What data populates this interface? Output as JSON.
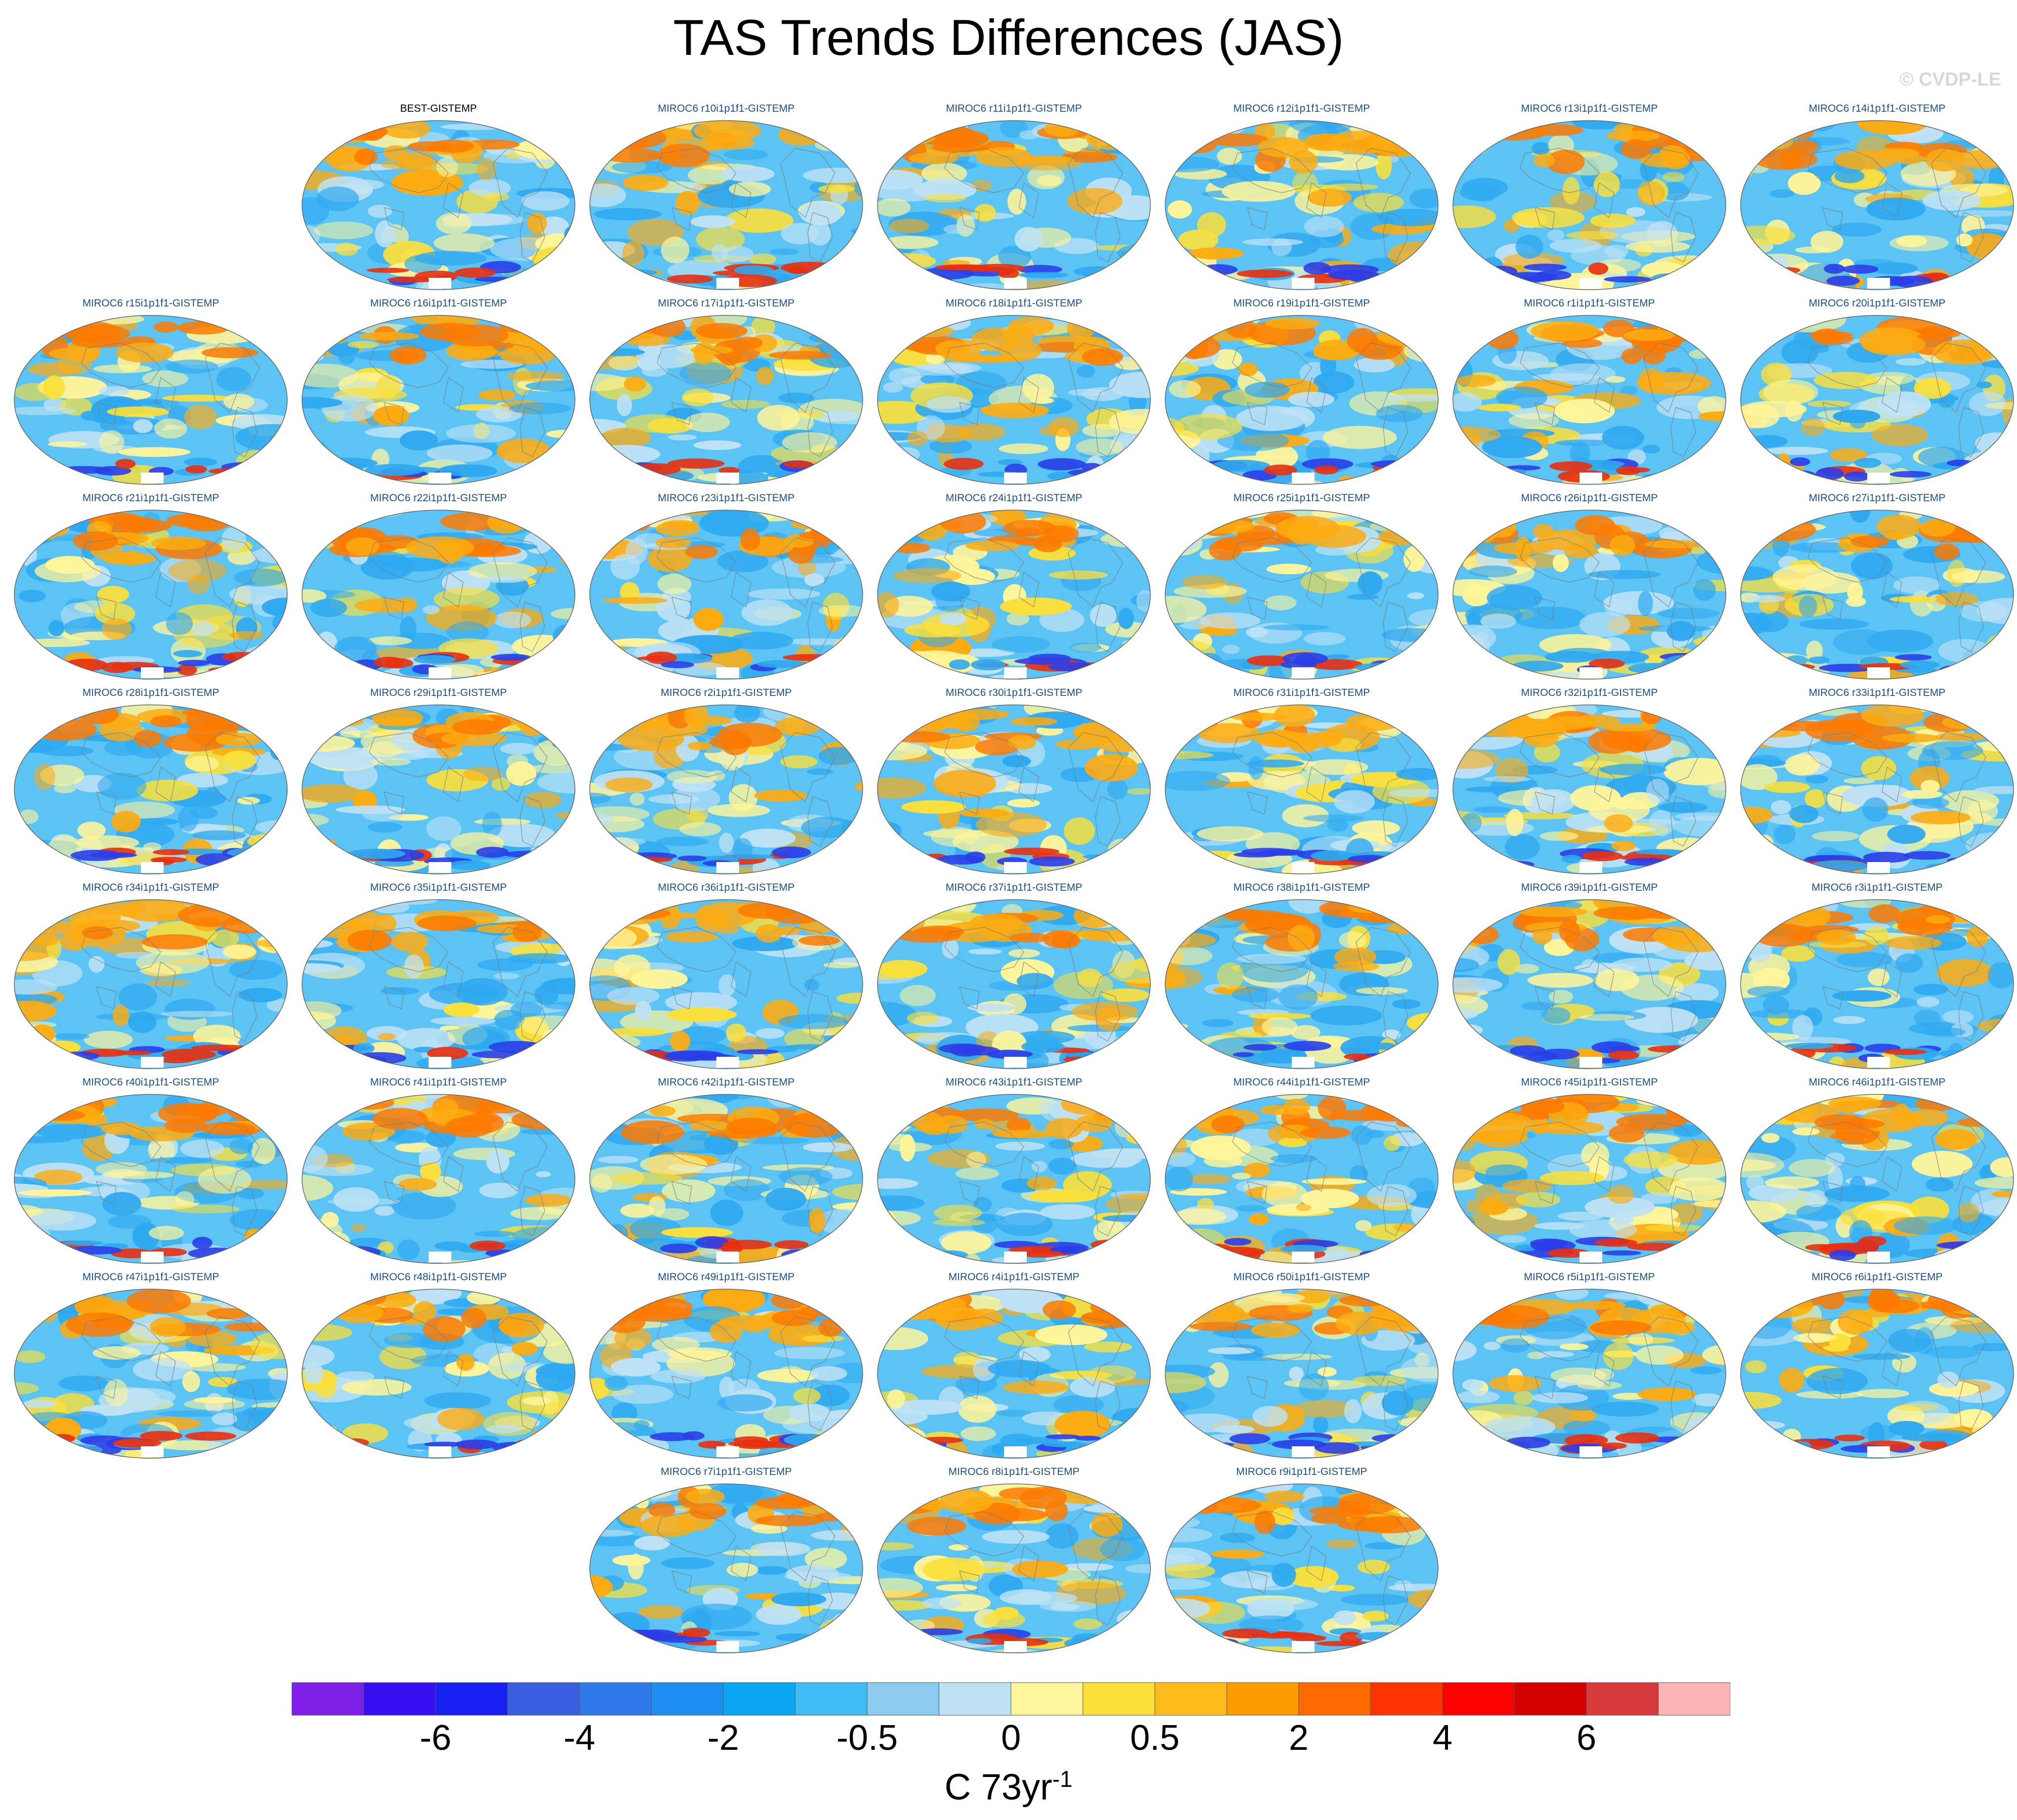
{
  "title": "TAS Trends Differences (JAS)",
  "watermark": "© CVDP-LE",
  "panels": [
    {
      "label": "BEST-GISTEMP",
      "row": 0,
      "col": 1,
      "observational": true
    },
    {
      "label": "MIROC6 r10i1p1f1-GISTEMP",
      "row": 0,
      "col": 2
    },
    {
      "label": "MIROC6 r11i1p1f1-GISTEMP",
      "row": 0,
      "col": 3
    },
    {
      "label": "MIROC6 r12i1p1f1-GISTEMP",
      "row": 0,
      "col": 4
    },
    {
      "label": "MIROC6 r13i1p1f1-GISTEMP",
      "row": 0,
      "col": 5
    },
    {
      "label": "MIROC6 r14i1p1f1-GISTEMP",
      "row": 0,
      "col": 6
    },
    {
      "label": "MIROC6 r15i1p1f1-GISTEMP",
      "row": 1,
      "col": 0
    },
    {
      "label": "MIROC6 r16i1p1f1-GISTEMP",
      "row": 1,
      "col": 1
    },
    {
      "label": "MIROC6 r17i1p1f1-GISTEMP",
      "row": 1,
      "col": 2
    },
    {
      "label": "MIROC6 r18i1p1f1-GISTEMP",
      "row": 1,
      "col": 3
    },
    {
      "label": "MIROC6 r19i1p1f1-GISTEMP",
      "row": 1,
      "col": 4
    },
    {
      "label": "MIROC6 r1i1p1f1-GISTEMP",
      "row": 1,
      "col": 5
    },
    {
      "label": "MIROC6 r20i1p1f1-GISTEMP",
      "row": 1,
      "col": 6
    },
    {
      "label": "MIROC6 r21i1p1f1-GISTEMP",
      "row": 2,
      "col": 0
    },
    {
      "label": "MIROC6 r22i1p1f1-GISTEMP",
      "row": 2,
      "col": 1
    },
    {
      "label": "MIROC6 r23i1p1f1-GISTEMP",
      "row": 2,
      "col": 2
    },
    {
      "label": "MIROC6 r24i1p1f1-GISTEMP",
      "row": 2,
      "col": 3
    },
    {
      "label": "MIROC6 r25i1p1f1-GISTEMP",
      "row": 2,
      "col": 4
    },
    {
      "label": "MIROC6 r26i1p1f1-GISTEMP",
      "row": 2,
      "col": 5
    },
    {
      "label": "MIROC6 r27i1p1f1-GISTEMP",
      "row": 2,
      "col": 6
    },
    {
      "label": "MIROC6 r28i1p1f1-GISTEMP",
      "row": 3,
      "col": 0
    },
    {
      "label": "MIROC6 r29i1p1f1-GISTEMP",
      "row": 3,
      "col": 1
    },
    {
      "label": "MIROC6 r2i1p1f1-GISTEMP",
      "row": 3,
      "col": 2
    },
    {
      "label": "MIROC6 r30i1p1f1-GISTEMP",
      "row": 3,
      "col": 3
    },
    {
      "label": "MIROC6 r31i1p1f1-GISTEMP",
      "row": 3,
      "col": 4
    },
    {
      "label": "MIROC6 r32i1p1f1-GISTEMP",
      "row": 3,
      "col": 5
    },
    {
      "label": "MIROC6 r33i1p1f1-GISTEMP",
      "row": 3,
      "col": 6
    },
    {
      "label": "MIROC6 r34i1p1f1-GISTEMP",
      "row": 4,
      "col": 0
    },
    {
      "label": "MIROC6 r35i1p1f1-GISTEMP",
      "row": 4,
      "col": 1
    },
    {
      "label": "MIROC6 r36i1p1f1-GISTEMP",
      "row": 4,
      "col": 2
    },
    {
      "label": "MIROC6 r37i1p1f1-GISTEMP",
      "row": 4,
      "col": 3
    },
    {
      "label": "MIROC6 r38i1p1f1-GISTEMP",
      "row": 4,
      "col": 4
    },
    {
      "label": "MIROC6 r39i1p1f1-GISTEMP",
      "row": 4,
      "col": 5
    },
    {
      "label": "MIROC6 r3i1p1f1-GISTEMP",
      "row": 4,
      "col": 6
    },
    {
      "label": "MIROC6 r40i1p1f1-GISTEMP",
      "row": 5,
      "col": 0
    },
    {
      "label": "MIROC6 r41i1p1f1-GISTEMP",
      "row": 5,
      "col": 1
    },
    {
      "label": "MIROC6 r42i1p1f1-GISTEMP",
      "row": 5,
      "col": 2
    },
    {
      "label": "MIROC6 r43i1p1f1-GISTEMP",
      "row": 5,
      "col": 3
    },
    {
      "label": "MIROC6 r44i1p1f1-GISTEMP",
      "row": 5,
      "col": 4
    },
    {
      "label": "MIROC6 r45i1p1f1-GISTEMP",
      "row": 5,
      "col": 5
    },
    {
      "label": "MIROC6 r46i1p1f1-GISTEMP",
      "row": 5,
      "col": 6
    },
    {
      "label": "MIROC6 r47i1p1f1-GISTEMP",
      "row": 6,
      "col": 0
    },
    {
      "label": "MIROC6 r48i1p1f1-GISTEMP",
      "row": 6,
      "col": 1
    },
    {
      "label": "MIROC6 r49i1p1f1-GISTEMP",
      "row": 6,
      "col": 2
    },
    {
      "label": "MIROC6 r4i1p1f1-GISTEMP",
      "row": 6,
      "col": 3
    },
    {
      "label": "MIROC6 r50i1p1f1-GISTEMP",
      "row": 6,
      "col": 4
    },
    {
      "label": "MIROC6 r5i1p1f1-GISTEMP",
      "row": 6,
      "col": 5
    },
    {
      "label": "MIROC6 r6i1p1f1-GISTEMP",
      "row": 6,
      "col": 6
    },
    {
      "label": "MIROC6 r7i1p1f1-GISTEMP",
      "row": 7,
      "col": 2
    },
    {
      "label": "MIROC6 r8i1p1f1-GISTEMP",
      "row": 7,
      "col": 3
    },
    {
      "label": "MIROC6 r9i1p1f1-GISTEMP",
      "row": 7,
      "col": 4
    }
  ],
  "colorbar": {
    "colors": [
      "#7f1fe8",
      "#3a0ef2",
      "#1722f2",
      "#3a5ee0",
      "#2f78ea",
      "#1d8ff2",
      "#0aa6f2",
      "#3dbcf5",
      "#8acbee",
      "#bfe2f5",
      "#fff59a",
      "#fbe03a",
      "#fdbb1c",
      "#fd9b00",
      "#fd6b00",
      "#fd3300",
      "#fd0000",
      "#d40000",
      "#d73a3a",
      "#fdb4b4"
    ],
    "tick_labels": [
      "-6",
      "-4",
      "-2",
      "-0.5",
      "0",
      "0.5",
      "2",
      "4",
      "6"
    ],
    "units": "C 73yr",
    "units_exponent": "-1"
  },
  "map_colors": {
    "ocean_base": "#5cc4f5",
    "cool_mid": "#2fa9f0",
    "light_blue": "#bfe2f5",
    "light_yellow": "#fff59a",
    "yellow": "#fbe03a",
    "orange": "#fdab10",
    "dark_orange": "#fd7a00",
    "deep_blue": "#2a3ee8",
    "red": "#e83010",
    "coastline": "#7a7a7a"
  }
}
